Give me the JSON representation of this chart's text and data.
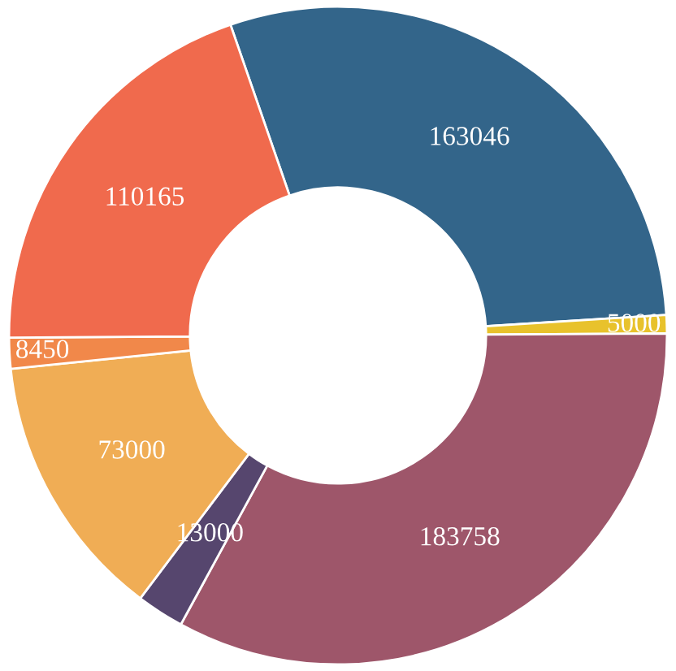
{
  "chart_data": {
    "type": "donut",
    "categories": [
      null,
      null,
      null,
      null,
      null,
      null,
      null
    ],
    "values": [
      163046,
      5000,
      183758,
      13000,
      73000,
      8450,
      110165
    ],
    "colors": [
      "#33658a",
      "#e8c22c",
      "#9e566a",
      "#56466e",
      "#f0ad55",
      "#f1884a",
      "#f06a4d"
    ],
    "data_labels": true
  }
}
